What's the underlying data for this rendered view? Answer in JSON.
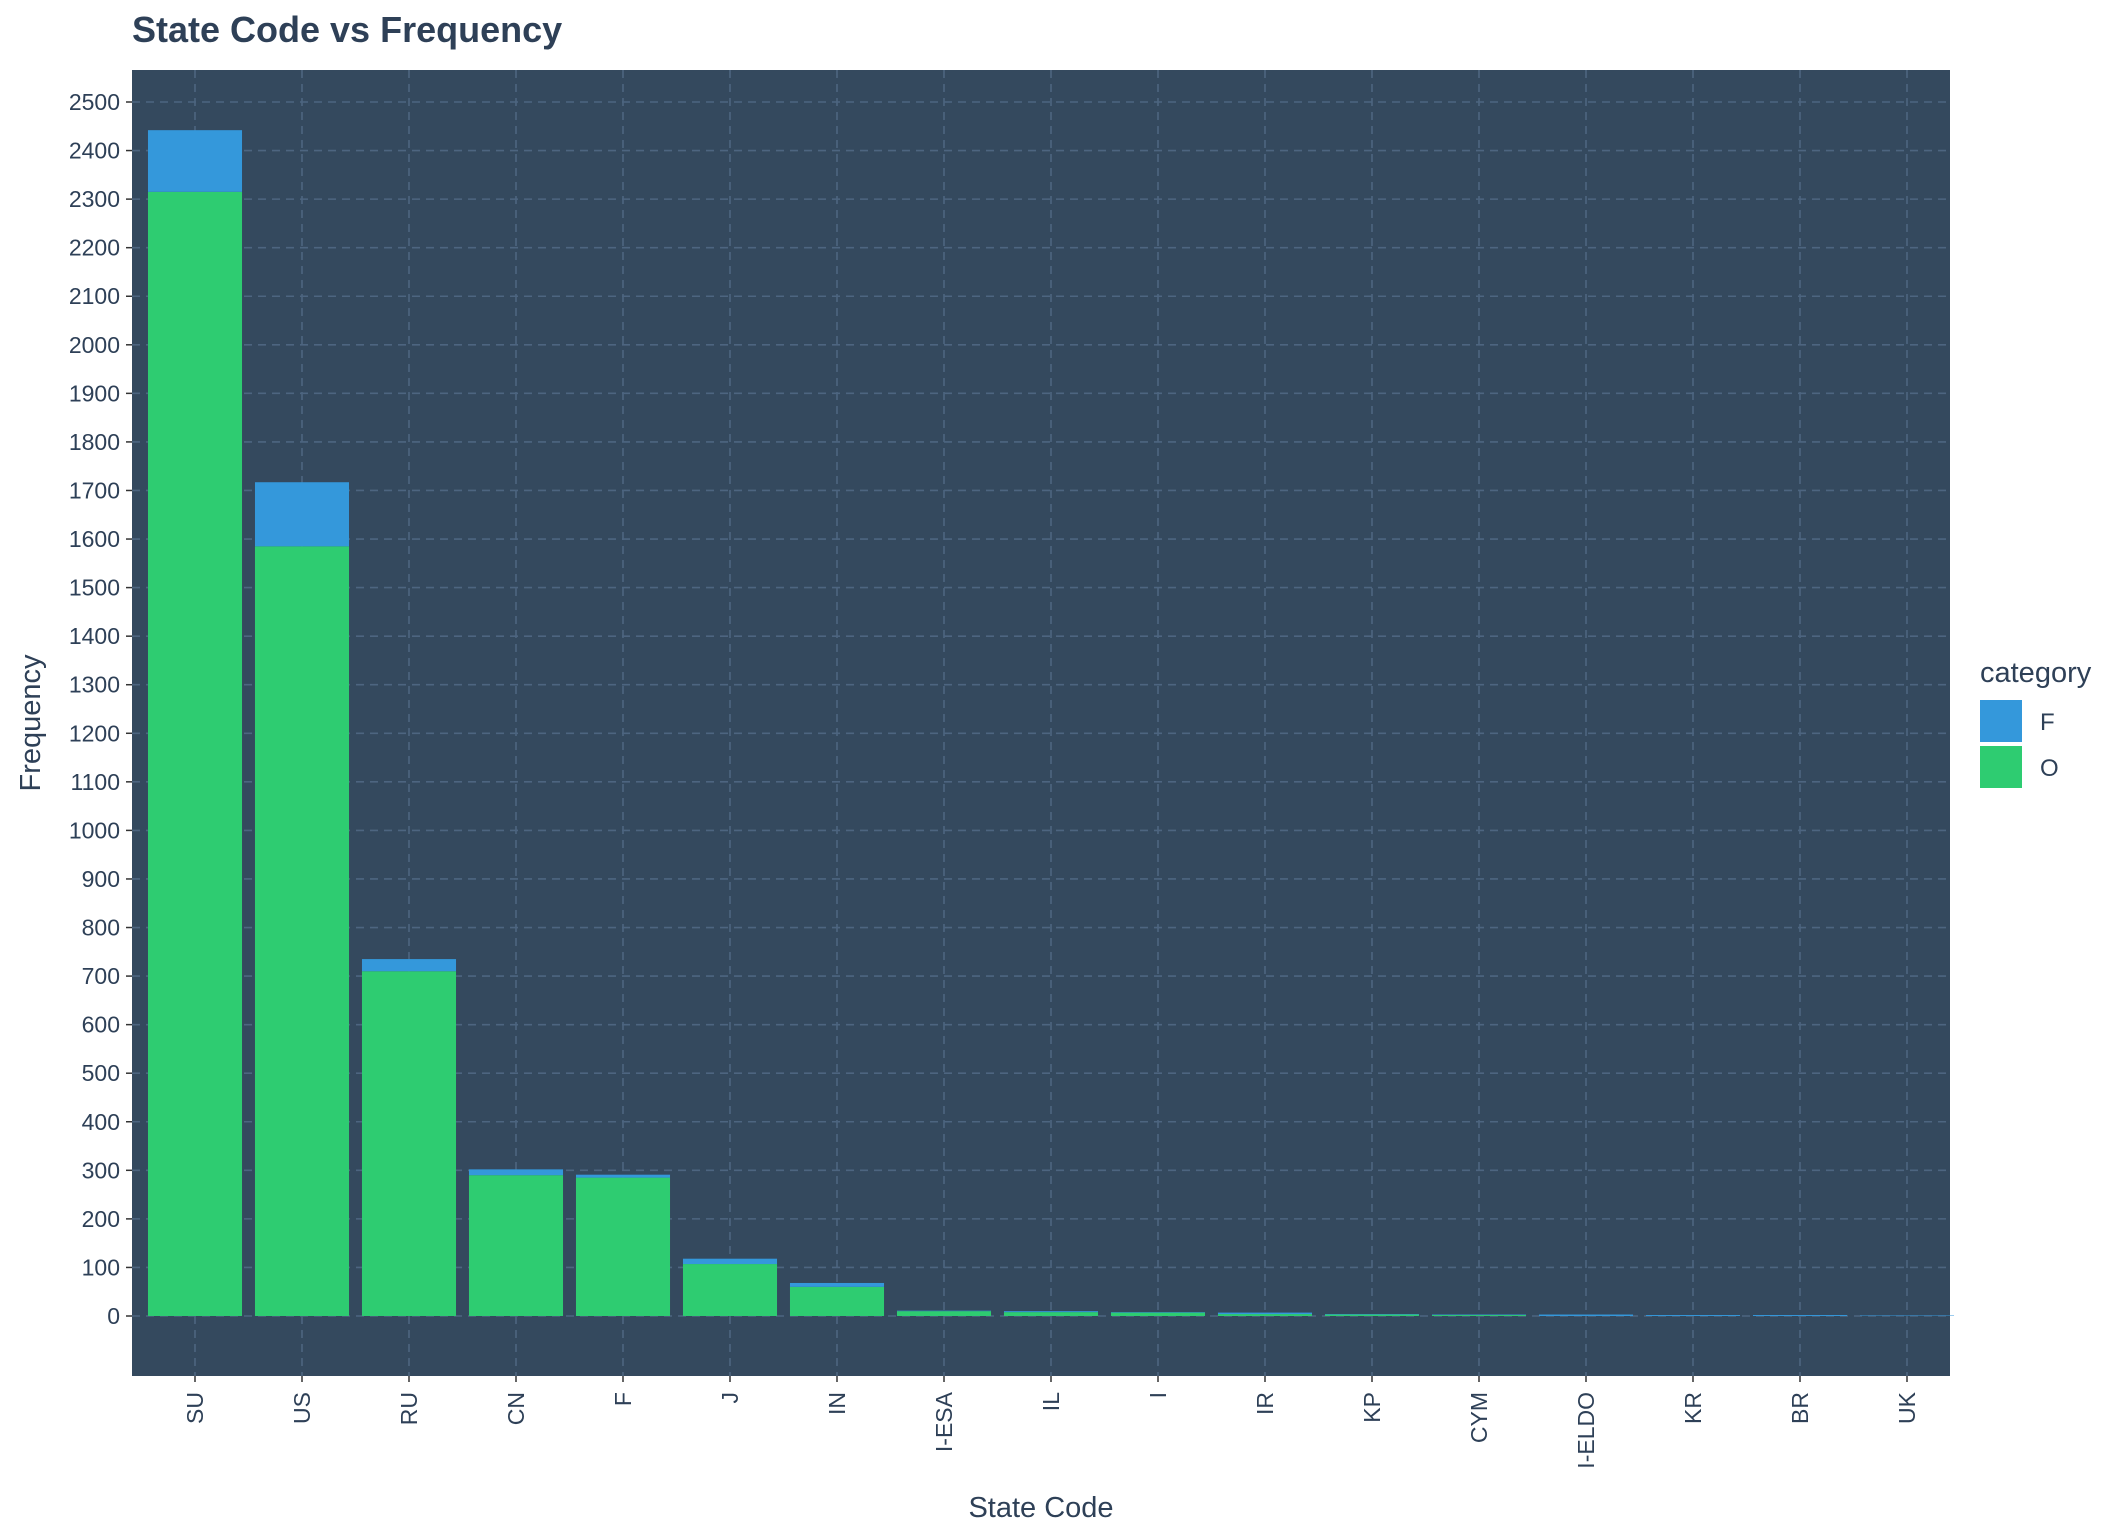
{
  "chart_data": {
    "type": "bar",
    "stacked": true,
    "title": "State Code vs Frequency",
    "xlabel": "State Code",
    "ylabel": "Frequency",
    "ylim": [
      0,
      2500
    ],
    "yticks": [
      0,
      100,
      200,
      300,
      400,
      500,
      600,
      700,
      800,
      900,
      1000,
      1100,
      1200,
      1300,
      1400,
      1500,
      1600,
      1700,
      1800,
      1900,
      2000,
      2100,
      2200,
      2300,
      2400,
      2500
    ],
    "grid": true,
    "legend_position": "right",
    "legend_title": "category",
    "categories": [
      "SU",
      "US",
      "RU",
      "CN",
      "F",
      "J",
      "IN",
      "I-ESA",
      "IL",
      "I",
      "IR",
      "KP",
      "CYM",
      "I-ELDO",
      "KR",
      "BR",
      "UK"
    ],
    "series": [
      {
        "name": "O",
        "color": "#2ecc71",
        "values": [
          2315,
          1585,
          710,
          290,
          285,
          107,
          60,
          10,
          8,
          7,
          4,
          3,
          2,
          0,
          0,
          0,
          0
        ]
      },
      {
        "name": "F",
        "color": "#3498db",
        "values": [
          127,
          132,
          25,
          12,
          6,
          11,
          8,
          1,
          2,
          1,
          3,
          1,
          1,
          3,
          2,
          2,
          1
        ]
      }
    ],
    "legend_order": [
      "F",
      "O"
    ],
    "colors": {
      "panel_background": "#34495e",
      "grid": "#4d6580",
      "text": "#2e4057"
    }
  }
}
